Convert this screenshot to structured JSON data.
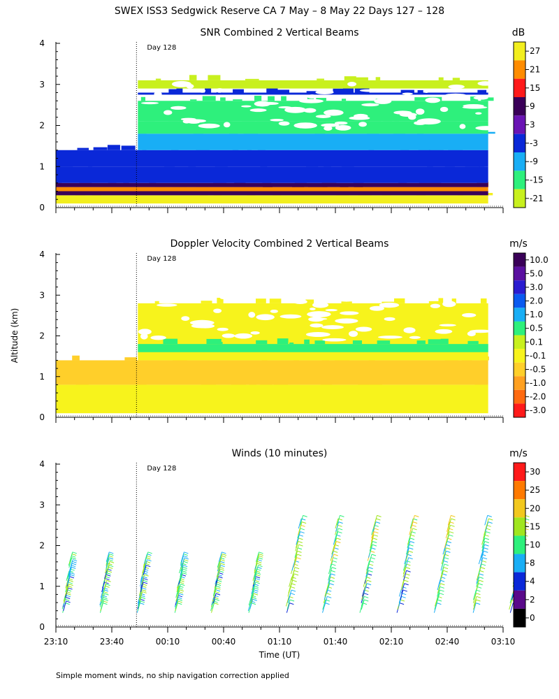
{
  "figure": {
    "title": "SWEX ISS3 Sedgwick Reserve CA   7 May –  8 May 22 Days 127 – 128",
    "footnote": "Simple moment winds, no ship navigation correction applied",
    "ylabel": "Altitude (km)",
    "xlabel": "Time (UT)",
    "day_marker": "Day 128",
    "x_ticks": [
      "23:10",
      "23:40",
      "00:10",
      "00:40",
      "01:10",
      "01:40",
      "02:10",
      "02:40",
      "03:10"
    ],
    "y_ticks": [
      "0",
      "1",
      "2",
      "3",
      "4"
    ]
  },
  "chart_data": [
    {
      "type": "heatmap",
      "title": "SNR Combined 2 Vertical Beams",
      "unit": "dB",
      "colorbar_labels": [
        "27",
        "21",
        "15",
        "9",
        "3",
        "-3",
        "-9",
        "-15",
        "-21"
      ],
      "colorbar_colors": [
        "#f2ee1e",
        "#ff8c00",
        "#ff1a1a",
        "#3a0058",
        "#6a14b4",
        "#0a28d8",
        "#19aef5",
        "#2ef07c",
        "#c8f01e"
      ],
      "xlim": [
        "23:10",
        "03:10"
      ],
      "ylim": [
        0,
        4
      ],
      "layers": [
        {
          "bottom_km": 0.1,
          "top_km": 0.3,
          "value": 27
        },
        {
          "bottom_km": 0.3,
          "top_km": 0.4,
          "value": 9
        },
        {
          "bottom_km": 0.4,
          "top_km": 0.5,
          "value": 21
        },
        {
          "bottom_km": 0.5,
          "top_km": 0.6,
          "value": 9
        },
        {
          "bottom_km": 0.6,
          "top_km": 1.0,
          "value": -3
        },
        {
          "bottom_km": 1.0,
          "top_km": 1.4,
          "value": -3
        },
        {
          "bottom_km": 1.4,
          "top_km": 1.8,
          "value": -9
        },
        {
          "bottom_km": 1.8,
          "top_km": 2.1,
          "value": -15
        },
        {
          "bottom_km": 2.1,
          "top_km": 2.6,
          "value": -15
        },
        {
          "bottom_km": 2.75,
          "top_km": 2.8,
          "value": -3
        },
        {
          "bottom_km": 2.9,
          "top_km": 3.1,
          "value": -21
        }
      ]
    },
    {
      "type": "heatmap",
      "title": "Doppler Velocity Combined 2 Vertical Beams",
      "unit": "m/s",
      "colorbar_labels": [
        "10.0",
        "5.0",
        "3.0",
        "2.0",
        "1.0",
        "0.5",
        "0.1",
        "-0.1",
        "-0.5",
        "-1.0",
        "-2.0",
        "-3.0"
      ],
      "colorbar_colors": [
        "#3a0058",
        "#5a10a0",
        "#2a1cd0",
        "#0a5af0",
        "#19aef5",
        "#2ef07c",
        "#c8f01e",
        "#f7f31c",
        "#ffcf2a",
        "#ffa020",
        "#ff6a10",
        "#ff1a1a"
      ],
      "xlim": [
        "23:10",
        "03:10"
      ],
      "ylim": [
        0,
        4
      ],
      "layers": [
        {
          "bottom_km": 0.1,
          "top_km": 0.8,
          "value": -0.1
        },
        {
          "bottom_km": 0.8,
          "top_km": 1.4,
          "value": -0.5
        },
        {
          "bottom_km": 1.4,
          "top_km": 2.0,
          "value": -0.1
        },
        {
          "bottom_km": 2.0,
          "top_km": 2.8,
          "value": -0.1
        },
        {
          "bottom_km": 1.6,
          "top_km": 1.8,
          "value": 0.5
        }
      ]
    },
    {
      "type": "scatter",
      "title": "Winds (10 minutes)",
      "unit": "m/s",
      "colorbar_labels": [
        "30",
        "25",
        "20",
        "15",
        "10",
        "8",
        "4",
        "2",
        "0"
      ],
      "colorbar_colors": [
        "#ff1a1a",
        "#ff7a00",
        "#f2c81e",
        "#a0e61e",
        "#2ef07c",
        "#19aef5",
        "#0a28d8",
        "#5a0a8a",
        "#000000"
      ],
      "xlim": [
        "23:10",
        "03:10"
      ],
      "ylim": [
        0,
        4
      ],
      "profiles_time_min": [
        0,
        20,
        40,
        60,
        80,
        100,
        120,
        140,
        160,
        180,
        200,
        220,
        240
      ],
      "profile_top_km": 2.5
    }
  ]
}
